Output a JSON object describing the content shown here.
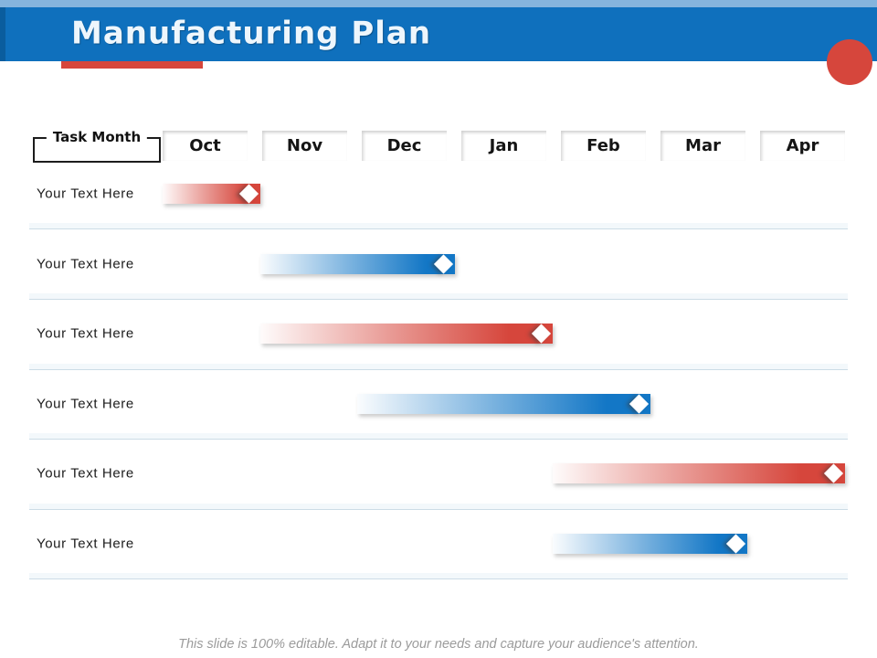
{
  "slide": {
    "title": "Manufacturing Plan",
    "footer": "This slide is 100% editable. Adapt it to your needs and capture your audience's attention."
  },
  "theme": {
    "header_blue": "#0f70bd",
    "header_light_blue": "#85b4dd",
    "header_dark_edge": "#0a5d9e",
    "accent_red": "#d6463c",
    "bar_blue": "#1377c6",
    "separator_band": "#f3f8fb",
    "separator_line": "#ccdce6",
    "footer_gray": "#9b9b9b"
  },
  "chart_data": {
    "type": "bar",
    "variant": "gantt-timeline",
    "column_header": "Task Month",
    "categories": [
      "Oct",
      "Nov",
      "Dec",
      "Jan",
      "Feb",
      "Mar",
      "Apr"
    ],
    "axis_unit": "month-columns, index 0 = Oct start, 7 = Apr end",
    "grid": false,
    "legend_position": "none",
    "tasks": [
      {
        "label": "Your Text Here",
        "color": "red",
        "start": 0,
        "end": 1,
        "start_month": "Oct",
        "end_month": "Oct",
        "end_marker": "diamond"
      },
      {
        "label": "Your Text Here",
        "color": "blue",
        "start": 1,
        "end": 3,
        "start_month": "Nov",
        "end_month": "Dec",
        "end_marker": "diamond"
      },
      {
        "label": "Your Text Here",
        "color": "red",
        "start": 1,
        "end": 4,
        "start_month": "Nov",
        "end_month": "Jan",
        "end_marker": "diamond"
      },
      {
        "label": "Your Text Here",
        "color": "blue",
        "start": 2,
        "end": 5,
        "start_month": "Dec",
        "end_month": "Feb",
        "end_marker": "diamond"
      },
      {
        "label": "Your Text Here",
        "color": "red",
        "start": 4,
        "end": 7,
        "start_month": "Feb",
        "end_month": "Apr",
        "end_marker": "diamond"
      },
      {
        "label": "Your Text Here",
        "color": "blue",
        "start": 4,
        "end": 6,
        "start_month": "Feb",
        "end_month": "Mar",
        "end_marker": "diamond"
      }
    ]
  }
}
